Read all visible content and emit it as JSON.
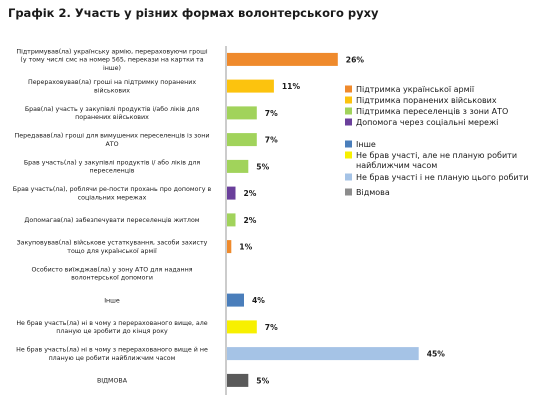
{
  "chart_data": {
    "type": "bar",
    "orientation": "horizontal",
    "title": "Графік 2. Участь у різних формах волонтерського руху",
    "xlim": [
      0,
      46
    ],
    "grid": false,
    "legend_position": "right",
    "categories": [
      [
        "Підтримував(ла) українську армію, перераховуючи гроші",
        "(у тому числі смс на номер 565, перекази на картки та",
        "інше)"
      ],
      [
        "Перераховував(ла) гроші на підтримку поранених",
        "військових"
      ],
      [
        "Брав(ла) участь у закупівлі продуктів і/або ліків для",
        "поранених військових"
      ],
      [
        "Передавав(ла) гроші для вимушених переселенців із зони",
        "АТО"
      ],
      [
        "Брав участь(ла) у закупівлі продуктів і/ або ліків для",
        "переселенців"
      ],
      [
        "Брав участь(ла), роблячи ре-пости прохань про допомогу в",
        "соціальних мережах"
      ],
      [
        "Допомагав(ла) забезпечувати переселенців житлом"
      ],
      [
        "Закуповував(ла) військове устаткування, засоби захисту",
        "тощо для української армії"
      ],
      [
        "Особисто виїжджав(ла) у зону АТО для надання",
        "волонтерської допомоги"
      ],
      [
        "Інше"
      ],
      [
        "Не брав участь(ла) ні в чому з перерахованого вище, але",
        "планую це зробити до кінця року"
      ],
      [
        "Не брав участь(ла) ні в чому з перерахованого вище й не",
        "планую це робити найближчим часом"
      ],
      [
        "ВІДМОВА"
      ]
    ],
    "values": [
      26,
      11,
      7,
      7,
      5,
      2,
      2,
      1,
      null,
      4,
      7,
      45,
      5
    ],
    "value_labels": [
      "26%",
      "11%",
      "7%",
      "7%",
      "5%",
      "2%",
      "2%",
      "1%",
      "",
      "4%",
      "7%",
      "45%",
      "5%"
    ],
    "bar_colors": [
      "#ef8a2c",
      "#fcc30e",
      "#a1d35b",
      "#a1d35b",
      "#a1d35b",
      "#6a3f9b",
      "#a1d35b",
      "#ef8a2c",
      "#ffffff",
      "#4a7ebb",
      "#f7f000",
      "#a5c3e6",
      "#5a5a5a"
    ],
    "legend": [
      {
        "label": "Підтримка української армії",
        "color": "#ef8a2c"
      },
      {
        "label": "Підтримка поранених військових",
        "color": "#fcc30e"
      },
      {
        "label": "Підтримка переселенців з зони АТО",
        "color": "#a1d35b"
      },
      {
        "label": "Допомога через соціальні мережі",
        "color": "#6a3f9b"
      },
      {
        "label": "Інше",
        "color": "#4a7ebb"
      },
      {
        "label": "Не брав участі, але не планую робити найближчим часом",
        "color": "#f7f000"
      },
      {
        "label": "Не брав участі і не планую цього робити",
        "color": "#a5c3e6"
      },
      {
        "label": "Відмова",
        "color": "#8c8c8c"
      }
    ]
  }
}
